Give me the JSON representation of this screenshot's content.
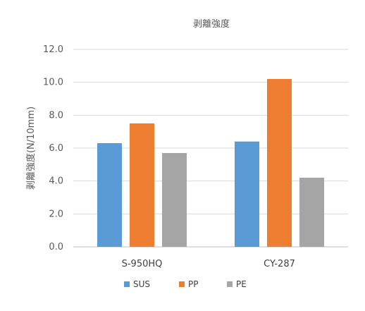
{
  "chart_data": {
    "type": "bar",
    "title": "剥離強度",
    "xlabel": "",
    "ylabel": "剥離強度(N/10mm)",
    "categories": [
      "S-950HQ",
      "CY-287"
    ],
    "series": [
      {
        "name": "SUS",
        "values": [
          6.3,
          6.4
        ],
        "color": "#5b9bd5"
      },
      {
        "name": "PP",
        "values": [
          7.5,
          10.2
        ],
        "color": "#ed7d31"
      },
      {
        "name": "PE",
        "values": [
          5.7,
          4.2
        ],
        "color": "#a5a5a5"
      }
    ],
    "ylim": [
      0,
      12
    ],
    "yticks": [
      "0.0",
      "2.0",
      "4.0",
      "6.0",
      "8.0",
      "10.0",
      "12.0"
    ],
    "grid": true,
    "legend_position": "bottom"
  }
}
